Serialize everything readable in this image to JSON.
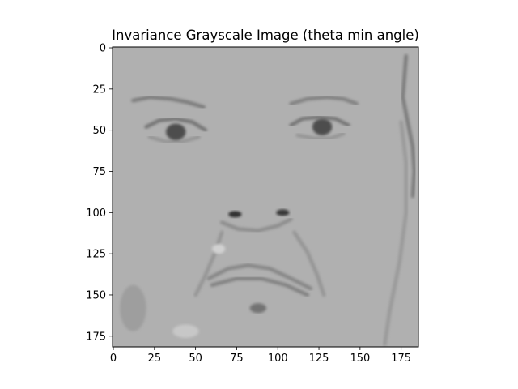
{
  "chart_data": {
    "type": "heatmap",
    "title": "Invariance Grayscale Image (theta min angle)",
    "xlabel": "",
    "ylabel": "",
    "image_width": 186,
    "image_height": 182,
    "x_ticks": [
      0,
      25,
      50,
      75,
      100,
      125,
      150,
      175
    ],
    "y_ticks": [
      0,
      25,
      50,
      75,
      100,
      125,
      150,
      175
    ],
    "xlim": [
      -0.5,
      185.5
    ],
    "ylim": [
      181.5,
      -0.5
    ],
    "colormap": "gray",
    "background_value": 0.69,
    "grid": false,
    "features": [
      {
        "name": "left-eyebrow",
        "kind": "stroke",
        "points": [
          [
            12,
            32
          ],
          [
            22,
            30
          ],
          [
            35,
            31
          ],
          [
            45,
            33
          ],
          [
            55,
            36
          ]
        ],
        "value": 0.48
      },
      {
        "name": "right-eyebrow",
        "kind": "stroke",
        "points": [
          [
            108,
            34
          ],
          [
            118,
            31
          ],
          [
            130,
            30
          ],
          [
            140,
            31
          ],
          [
            148,
            34
          ]
        ],
        "value": 0.5
      },
      {
        "name": "left-eye-upper-lid",
        "kind": "stroke",
        "points": [
          [
            20,
            48
          ],
          [
            28,
            44
          ],
          [
            38,
            43
          ],
          [
            48,
            45
          ],
          [
            56,
            50
          ]
        ],
        "value": 0.45
      },
      {
        "name": "left-eye-lower-lid",
        "kind": "stroke",
        "points": [
          [
            22,
            54
          ],
          [
            32,
            57
          ],
          [
            42,
            57
          ],
          [
            52,
            54
          ]
        ],
        "value": 0.58
      },
      {
        "name": "left-pupil",
        "kind": "blob",
        "cx": 38,
        "cy": 51,
        "rx": 6,
        "ry": 5,
        "value": 0.3
      },
      {
        "name": "right-eye-upper-lid",
        "kind": "stroke",
        "points": [
          [
            108,
            47
          ],
          [
            115,
            43
          ],
          [
            125,
            42
          ],
          [
            135,
            43
          ],
          [
            143,
            47
          ]
        ],
        "value": 0.45
      },
      {
        "name": "right-eye-lower-lid",
        "kind": "stroke",
        "points": [
          [
            112,
            53
          ],
          [
            122,
            55
          ],
          [
            132,
            55
          ],
          [
            140,
            52
          ]
        ],
        "value": 0.58
      },
      {
        "name": "right-pupil",
        "kind": "blob",
        "cx": 127,
        "cy": 48,
        "rx": 6,
        "ry": 5,
        "value": 0.3
      },
      {
        "name": "left-nostril",
        "kind": "blob",
        "cx": 74,
        "cy": 101,
        "rx": 4,
        "ry": 2,
        "value": 0.2
      },
      {
        "name": "right-nostril",
        "kind": "blob",
        "cx": 103,
        "cy": 100,
        "rx": 4,
        "ry": 2,
        "value": 0.22
      },
      {
        "name": "nose-base",
        "kind": "stroke",
        "points": [
          [
            66,
            106
          ],
          [
            76,
            110
          ],
          [
            88,
            111
          ],
          [
            100,
            108
          ],
          [
            108,
            104
          ]
        ],
        "value": 0.55
      },
      {
        "name": "left-nasolabial-fold",
        "kind": "stroke",
        "points": [
          [
            66,
            112
          ],
          [
            62,
            124
          ],
          [
            56,
            138
          ],
          [
            50,
            150
          ]
        ],
        "value": 0.58
      },
      {
        "name": "right-nasolabial-fold",
        "kind": "stroke",
        "points": [
          [
            110,
            112
          ],
          [
            118,
            124
          ],
          [
            124,
            138
          ],
          [
            128,
            150
          ]
        ],
        "value": 0.58
      },
      {
        "name": "upper-lip-line",
        "kind": "stroke",
        "points": [
          [
            58,
            140
          ],
          [
            70,
            134
          ],
          [
            82,
            132
          ],
          [
            95,
            134
          ],
          [
            108,
            140
          ],
          [
            120,
            146
          ]
        ],
        "value": 0.52
      },
      {
        "name": "mouth-line",
        "kind": "stroke",
        "points": [
          [
            60,
            144
          ],
          [
            75,
            140
          ],
          [
            90,
            140
          ],
          [
            105,
            144
          ],
          [
            118,
            150
          ]
        ],
        "value": 0.5
      },
      {
        "name": "chin-dark",
        "kind": "blob",
        "cx": 88,
        "cy": 158,
        "rx": 5,
        "ry": 3,
        "value": 0.45
      },
      {
        "name": "cheek-light-spot",
        "kind": "blob",
        "cx": 64,
        "cy": 122,
        "rx": 4,
        "ry": 3,
        "value": 0.82
      },
      {
        "name": "right-edge-hairline",
        "kind": "stroke",
        "points": [
          [
            178,
            5
          ],
          [
            176,
            30
          ],
          [
            179,
            45
          ],
          [
            182,
            60
          ],
          [
            183,
            75
          ],
          [
            182,
            90
          ]
        ],
        "value": 0.48
      },
      {
        "name": "right-face-contour",
        "kind": "stroke",
        "points": [
          [
            175,
            45
          ],
          [
            178,
            70
          ],
          [
            178,
            100
          ],
          [
            174,
            130
          ],
          [
            168,
            160
          ],
          [
            165,
            180
          ]
        ],
        "value": 0.6
      },
      {
        "name": "left-lower-patch",
        "kind": "blob",
        "cx": 12,
        "cy": 158,
        "rx": 8,
        "ry": 14,
        "value": 0.62
      },
      {
        "name": "bottom-light-patch",
        "kind": "blob",
        "cx": 44,
        "cy": 172,
        "rx": 8,
        "ry": 4,
        "value": 0.78
      }
    ]
  }
}
